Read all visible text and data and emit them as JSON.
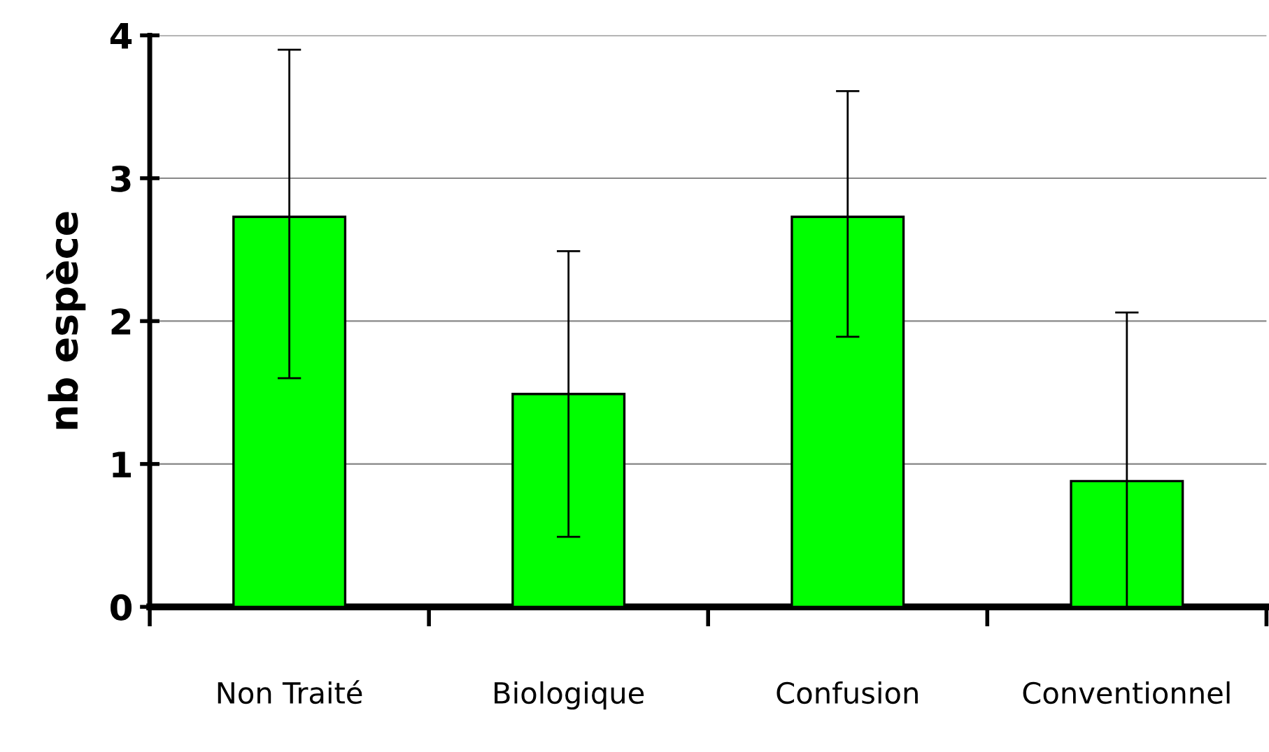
{
  "chart_data": {
    "type": "bar",
    "ylabel": "nb espèce",
    "categories": [
      "Non Traité",
      "Biologique",
      "Confusion",
      "Conventionnel"
    ],
    "values": [
      2.73,
      1.49,
      2.73,
      0.88
    ],
    "errors": [
      [
        1.6,
        3.9
      ],
      [
        0.49,
        2.49
      ],
      [
        1.89,
        3.61
      ],
      [
        0,
        2.06
      ]
    ],
    "color": "#00ff00",
    "ylim": [
      0,
      4
    ],
    "yticks": [
      0,
      1,
      2,
      3,
      4
    ],
    "grid": "y"
  }
}
